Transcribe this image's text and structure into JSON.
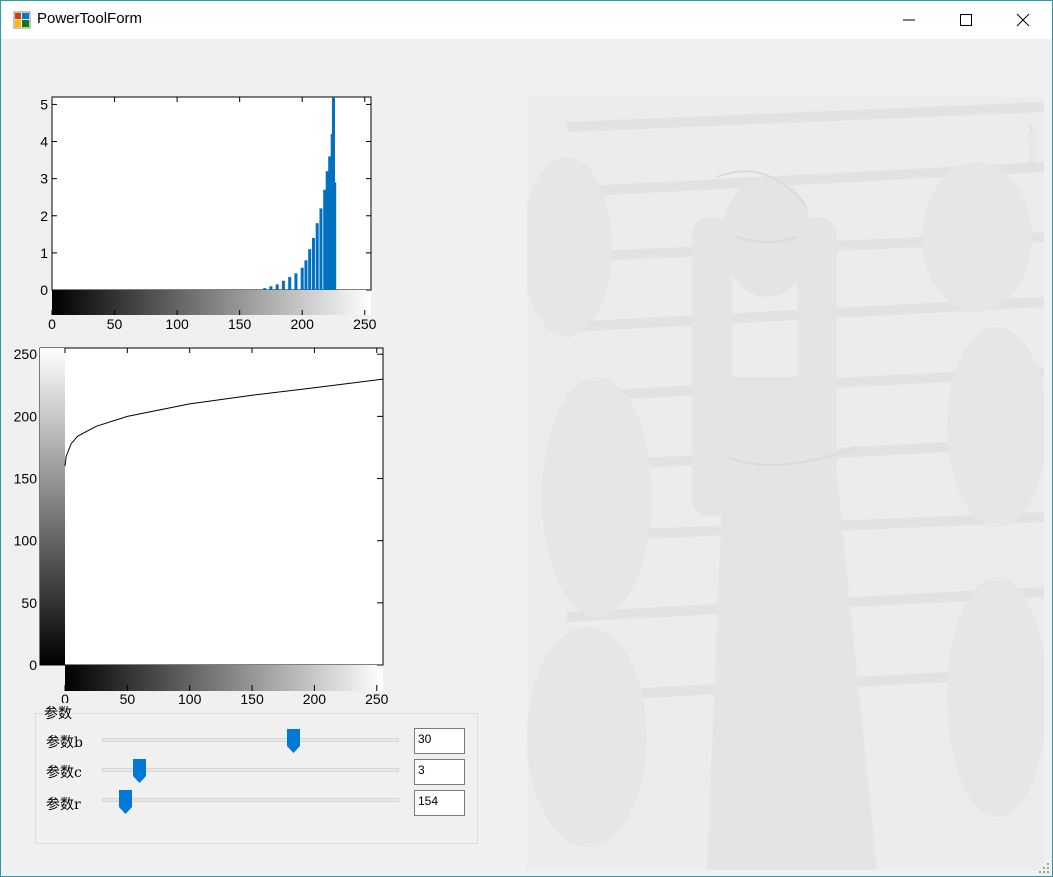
{
  "window": {
    "title": "PowerToolForm"
  },
  "histogram": {
    "y_ticks": [
      "0",
      "1",
      "2",
      "3",
      "4",
      "5"
    ],
    "x_ticks": [
      "0",
      "50",
      "100",
      "150",
      "200",
      "250"
    ],
    "bar_color": "#0070c0"
  },
  "curve": {
    "y_ticks": [
      "0",
      "50",
      "100",
      "150",
      "200",
      "250"
    ],
    "x_ticks": [
      "0",
      "50",
      "100",
      "150",
      "200",
      "250"
    ]
  },
  "params": {
    "group_title": "参数",
    "items": [
      {
        "label": "参数b",
        "value": "30",
        "fraction": 0.645
      },
      {
        "label": "参数c",
        "value": "3",
        "fraction": 0.125
      },
      {
        "label": "参数r",
        "value": "154",
        "fraction": 0.08
      }
    ]
  },
  "chart_data": [
    {
      "type": "bar",
      "title": "",
      "xlabel": "",
      "ylabel": "",
      "xlim": [
        0,
        255
      ],
      "ylim": [
        0,
        5.2
      ],
      "x": [
        170,
        175,
        180,
        185,
        190,
        195,
        200,
        203,
        206,
        209,
        212,
        215,
        218,
        220,
        222,
        224,
        225,
        226
      ],
      "values": [
        0.05,
        0.1,
        0.15,
        0.25,
        0.35,
        0.45,
        0.6,
        0.8,
        1.1,
        1.4,
        1.8,
        2.2,
        2.7,
        3.2,
        3.6,
        4.2,
        5.2,
        2.9
      ]
    },
    {
      "type": "line",
      "title": "",
      "xlabel": "",
      "ylabel": "",
      "xlim": [
        0,
        255
      ],
      "ylim": [
        0,
        255
      ],
      "x": [
        0,
        1,
        5,
        10,
        25,
        50,
        100,
        150,
        200,
        255
      ],
      "y": [
        160,
        168,
        178,
        184,
        192,
        200,
        210,
        217,
        223,
        230
      ]
    }
  ]
}
